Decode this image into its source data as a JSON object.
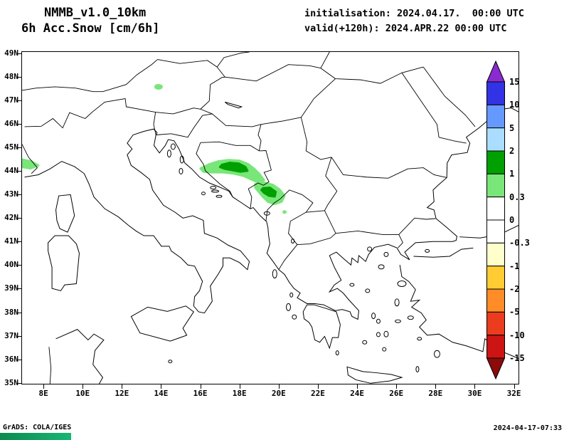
{
  "header": {
    "model": "NMMB_v1.0_10km",
    "product": "6h Acc.Snow [cm/6h]",
    "init_line": "initialisation: 2024.04.17.  00:00 UTC",
    "valid_line": "valid(+120h): 2024.APR.22 00:00 UTC"
  },
  "footer": {
    "credit": "GrADS: COLA/IGES",
    "timestamp": "2024-04-17-07:33"
  },
  "chart_data": {
    "type": "heatmap",
    "subtype": "filled-contour-weather-map",
    "title": "6h Acc.Snow [cm/6h]",
    "model": "NMMB_v1.0_10km",
    "initialisation": "2024.04.17. 00:00 UTC",
    "valid": "2024.APR.22 00:00 UTC",
    "lead_hours": 120,
    "units": "cm/6h",
    "grid": false,
    "map_extent": {
      "lon_min": 6.87,
      "lon_max": 32.27,
      "lat_min": 34.93,
      "lat_max": 49.09
    },
    "lat_ticks": [
      {
        "value": 35,
        "label": "35N"
      },
      {
        "value": 36,
        "label": "36N"
      },
      {
        "value": 37,
        "label": "37N"
      },
      {
        "value": 38,
        "label": "38N"
      },
      {
        "value": 39,
        "label": "39N"
      },
      {
        "value": 40,
        "label": "40N"
      },
      {
        "value": 41,
        "label": "41N"
      },
      {
        "value": 42,
        "label": "42N"
      },
      {
        "value": 43,
        "label": "43N"
      },
      {
        "value": 44,
        "label": "44N"
      },
      {
        "value": 45,
        "label": "45N"
      },
      {
        "value": 46,
        "label": "46N"
      },
      {
        "value": 47,
        "label": "47N"
      },
      {
        "value": 48,
        "label": "48N"
      },
      {
        "value": 49,
        "label": "49N"
      }
    ],
    "lon_ticks": [
      {
        "value": 8,
        "label": "8E"
      },
      {
        "value": 10,
        "label": "10E"
      },
      {
        "value": 12,
        "label": "12E"
      },
      {
        "value": 14,
        "label": "14E"
      },
      {
        "value": 16,
        "label": "16E"
      },
      {
        "value": 18,
        "label": "18E"
      },
      {
        "value": 20,
        "label": "20E"
      },
      {
        "value": 22,
        "label": "22E"
      },
      {
        "value": 24,
        "label": "24E"
      },
      {
        "value": 26,
        "label": "26E"
      },
      {
        "value": 28,
        "label": "28E"
      },
      {
        "value": 30,
        "label": "30E"
      },
      {
        "value": 32,
        "label": "32E"
      }
    ],
    "colorbar": {
      "orientation": "vertical-right",
      "levels": [
        15,
        10,
        5,
        2,
        1,
        0.3,
        0,
        -0.3,
        -1,
        -2,
        -5,
        -10,
        -15
      ],
      "colors": [
        "#8a2bd1",
        "#3333e6",
        "#6699ff",
        "#aaddff",
        "#00a000",
        "#78e678",
        "#ffffff",
        "#ffffff",
        "#ffffcc",
        "#ffcc33",
        "#ff8c26",
        "#eb3c1e",
        "#cc1414",
        "#8c0a0a"
      ]
    },
    "snow_areas": [
      {
        "name": "bosnia-light",
        "value_range_cm": "0.3-1",
        "color_index": 5,
        "polygon": [
          [
            16.0,
            44.12
          ],
          [
            16.45,
            44.3
          ],
          [
            16.9,
            44.42
          ],
          [
            17.45,
            44.48
          ],
          [
            18.0,
            44.45
          ],
          [
            18.45,
            44.3
          ],
          [
            18.75,
            44.1
          ],
          [
            19.0,
            43.9
          ],
          [
            19.25,
            43.62
          ],
          [
            18.95,
            43.52
          ],
          [
            18.6,
            43.65
          ],
          [
            18.2,
            43.8
          ],
          [
            17.7,
            43.9
          ],
          [
            17.15,
            43.95
          ],
          [
            16.6,
            43.95
          ],
          [
            16.15,
            43.98
          ]
        ]
      },
      {
        "name": "bosnia-core",
        "value_range_cm": "1-2",
        "color_index": 4,
        "polygon": [
          [
            17.1,
            44.28
          ],
          [
            17.5,
            44.36
          ],
          [
            17.95,
            44.33
          ],
          [
            18.3,
            44.18
          ],
          [
            18.4,
            44.02
          ],
          [
            18.05,
            43.98
          ],
          [
            17.6,
            44.05
          ],
          [
            17.25,
            44.1
          ],
          [
            17.0,
            44.18
          ]
        ]
      },
      {
        "name": "montenegro-light",
        "value_range_cm": "0.3-1",
        "color_index": 5,
        "polygon": [
          [
            18.8,
            43.45
          ],
          [
            19.25,
            43.52
          ],
          [
            19.7,
            43.42
          ],
          [
            20.05,
            43.22
          ],
          [
            20.3,
            42.95
          ],
          [
            20.15,
            42.7
          ],
          [
            19.8,
            42.6
          ],
          [
            19.45,
            42.7
          ],
          [
            19.2,
            42.9
          ],
          [
            18.95,
            43.15
          ],
          [
            18.8,
            43.3
          ]
        ]
      },
      {
        "name": "montenegro-core",
        "value_range_cm": "1-2",
        "color_index": 4,
        "polygon": [
          [
            19.2,
            43.28
          ],
          [
            19.55,
            43.3
          ],
          [
            19.85,
            43.12
          ],
          [
            19.8,
            42.92
          ],
          [
            19.5,
            42.95
          ],
          [
            19.25,
            43.08
          ],
          [
            19.12,
            43.2
          ]
        ]
      },
      {
        "name": "alps-spot",
        "value_range_cm": "0.3-1",
        "color_index": 5,
        "ellipse": [
          13.85,
          47.6,
          6,
          4
        ]
      },
      {
        "name": "piedmont-edge",
        "value_range_cm": "0.3-1",
        "color_index": 5,
        "polygon": [
          [
            6.87,
            44.5
          ],
          [
            7.35,
            44.42
          ],
          [
            7.7,
            44.25
          ],
          [
            7.3,
            44.12
          ],
          [
            6.87,
            44.18
          ]
        ]
      },
      {
        "name": "kosovo-spot",
        "value_range_cm": "0.3-1",
        "color_index": 5,
        "ellipse": [
          20.3,
          42.26,
          3,
          2.5
        ]
      }
    ]
  }
}
